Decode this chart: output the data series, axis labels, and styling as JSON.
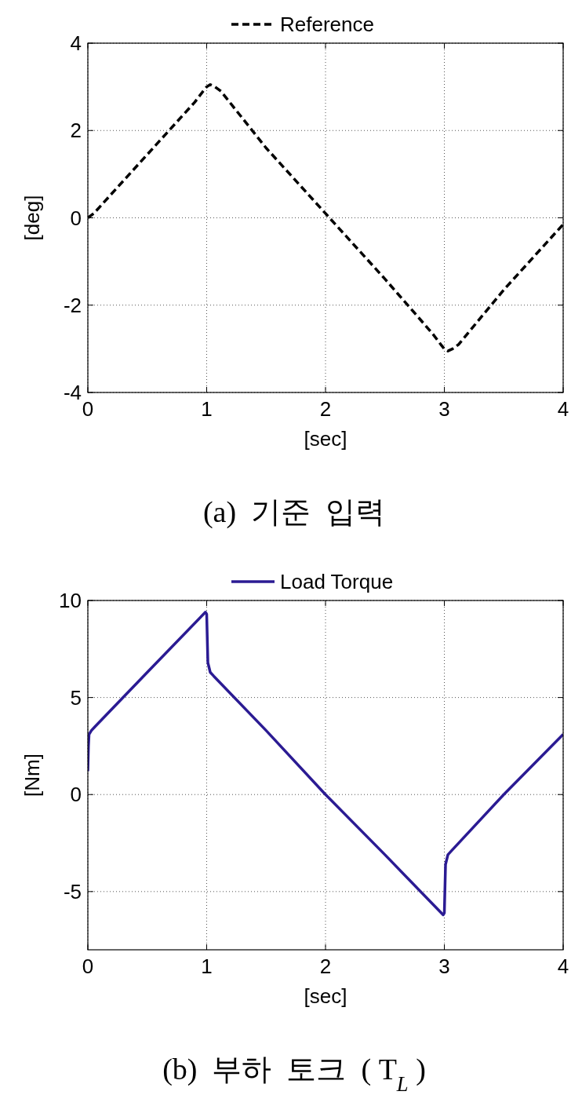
{
  "chart_data": [
    {
      "type": "line",
      "xlabel": "[sec]",
      "ylabel": "[deg]",
      "xlim": [
        0,
        4
      ],
      "ylim": [
        -4,
        4
      ],
      "xticks": [
        0,
        1,
        2,
        3,
        4
      ],
      "yticks": [
        -4,
        -2,
        0,
        2,
        4
      ],
      "grid": true,
      "legend": "top",
      "line_style": "dashed",
      "annotations": [
        "(a)  기준  입력"
      ],
      "series": [
        {
          "name": "Reference",
          "color": "#000000",
          "x": [
            0,
            0.05,
            0.1,
            0.5,
            0.9,
            0.97,
            1.0,
            1.03,
            1.07,
            1.12,
            1.5,
            2,
            2.5,
            2.9,
            2.97,
            3.0,
            3.03,
            3.07,
            3.12,
            3.5,
            4
          ],
          "values": [
            0,
            0.1,
            0.25,
            1.45,
            2.65,
            2.9,
            3.0,
            3.05,
            3.0,
            2.9,
            1.6,
            0.1,
            -1.4,
            -2.65,
            -2.9,
            -3.0,
            -3.05,
            -3.0,
            -2.9,
            -1.65,
            -0.15
          ]
        }
      ]
    },
    {
      "type": "line",
      "xlabel": "[sec]",
      "ylabel": "[Nm]",
      "xlim": [
        0,
        4
      ],
      "ylim": [
        -8,
        10
      ],
      "xticks": [
        0,
        1,
        2,
        3,
        4
      ],
      "yticks": [
        -5,
        0,
        5,
        10
      ],
      "grid": true,
      "legend": "top",
      "line_style": "solid",
      "annotations": [
        "(b)  부하  토크  ( T$_{L}$ )"
      ],
      "series": [
        {
          "name": "Load Torque",
          "color": "#2b1b93",
          "x": [
            0,
            0.005,
            0.01,
            0.03,
            0.06,
            0.5,
            0.99,
            1.0,
            1.01,
            1.03,
            1.06,
            1.5,
            2,
            2.5,
            2.99,
            3.0,
            3.01,
            3.03,
            3.06,
            3.5,
            4
          ],
          "values": [
            1.2,
            2.5,
            3.1,
            3.3,
            3.5,
            6.3,
            9.4,
            9.3,
            6.8,
            6.3,
            6.1,
            3.3,
            0.0,
            -3.1,
            -6.2,
            -6.1,
            -3.6,
            -3.1,
            -2.9,
            0.0,
            3.1
          ]
        }
      ]
    }
  ]
}
